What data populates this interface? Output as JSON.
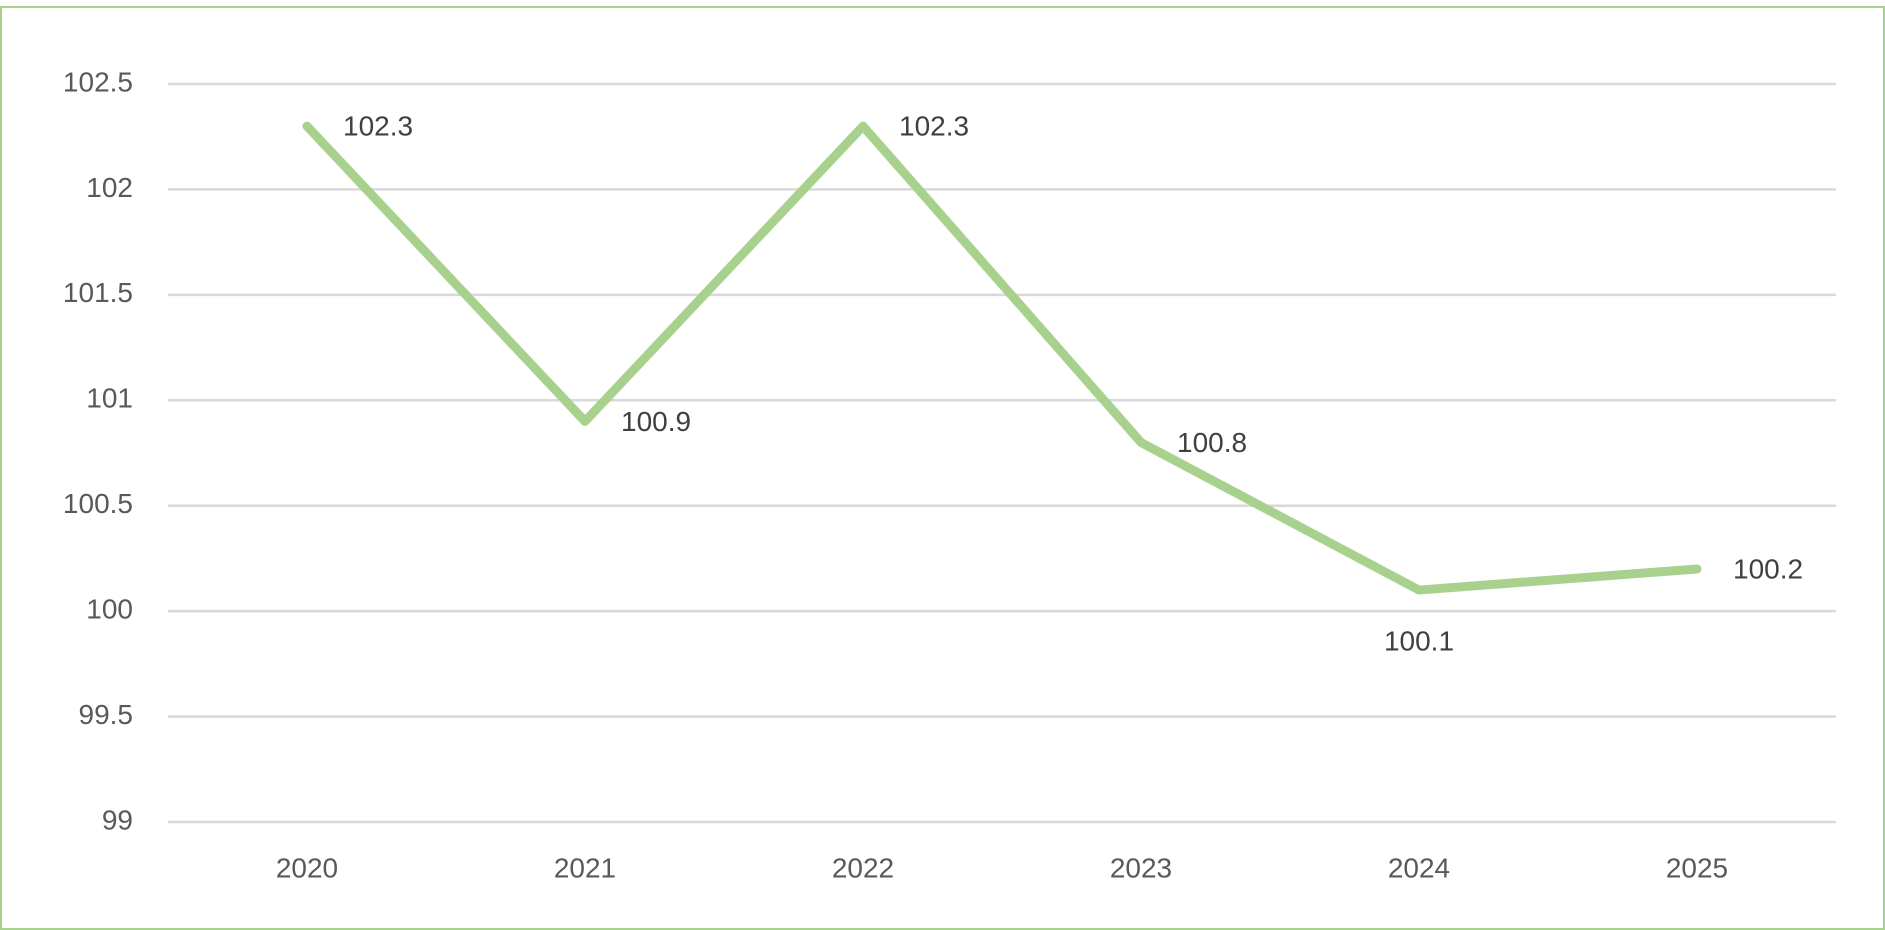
{
  "chart_data": {
    "type": "line",
    "categories": [
      "2020",
      "2021",
      "2022",
      "2023",
      "2024",
      "2025"
    ],
    "series": [
      {
        "color": "#a9d18e",
        "values": [
          102.3,
          100.9,
          102.3,
          100.8,
          100.1,
          100.2
        ]
      }
    ],
    "ylim": [
      99,
      102.5
    ],
    "yticks": [
      99,
      99.5,
      100,
      100.5,
      101,
      101.5,
      102,
      102.5
    ],
    "grid": true
  }
}
